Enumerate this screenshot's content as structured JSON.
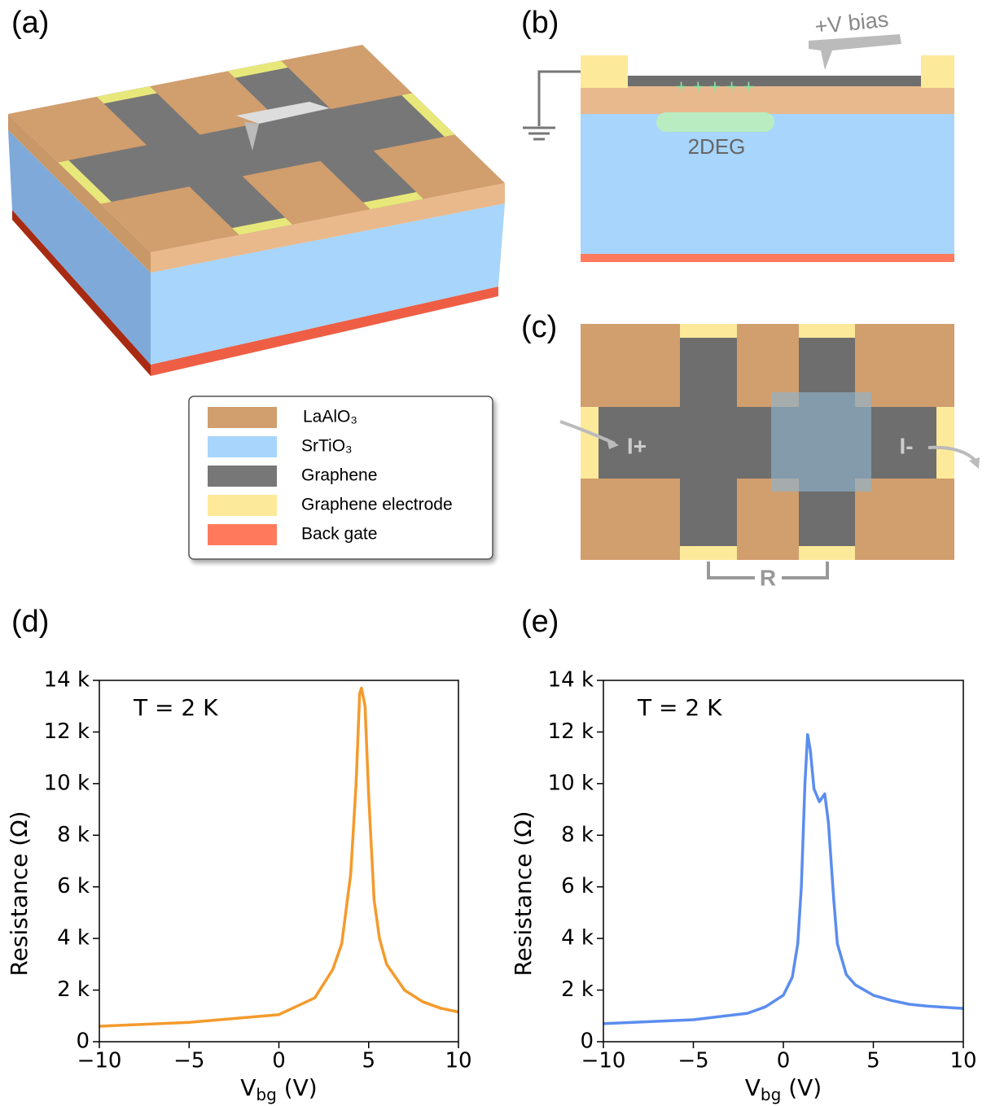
{
  "panel_labels": [
    "(a)",
    "(b)",
    "(c)",
    "(d)",
    "(e)"
  ],
  "legend": [
    "LaAlO₃",
    "SrTiO₃",
    "Graphene",
    "Graphene electrode",
    "Back gate"
  ],
  "diagram_b": {
    "bias": "+V bias",
    "charges": "+ + + + +",
    "deg": "2DEG"
  },
  "diagram_c": {
    "current_in": "I+",
    "current_out": "I-",
    "resistance": "R"
  },
  "chart_data": [
    {
      "type": "line",
      "annotation": "T = 2 K",
      "y_label": "Resistance (Ω)",
      "x_label": [
        "V",
        "bg",
        " (V)"
      ],
      "color": "#f49a2c",
      "x": [
        -10,
        -5,
        0,
        2,
        3,
        3.5,
        4,
        4.3,
        4.5,
        4.6,
        4.8,
        5,
        5.3,
        5.6,
        6,
        7,
        8,
        9,
        10
      ],
      "values": [
        600,
        750,
        1050,
        1700,
        2800,
        3800,
        6500,
        10000,
        13500,
        13700,
        13000,
        9500,
        5500,
        4000,
        3000,
        2000,
        1550,
        1300,
        1150
      ],
      "xlim": [
        -10,
        10
      ],
      "xticks": [
        {
          "value": -10,
          "label": "−10"
        },
        {
          "value": -5,
          "label": "−5"
        },
        0,
        5,
        10
      ],
      "ylim": [
        0,
        14000
      ],
      "yticks": [
        0,
        {
          "value": 2000,
          "label": "2 k"
        },
        {
          "value": 4000,
          "label": "4 k"
        },
        {
          "value": 6000,
          "label": "6 k"
        },
        {
          "value": 8000,
          "label": "8 k"
        },
        {
          "value": 10000,
          "label": "10 k"
        },
        {
          "value": 12000,
          "label": "12 k"
        },
        {
          "value": 14000,
          "label": "14 k"
        }
      ]
    },
    {
      "type": "line",
      "annotation": "T = 2 K",
      "y_label": "Resistance (Ω)",
      "x_label": [
        "V",
        "bg",
        " (V)"
      ],
      "color": "#5b8def",
      "x": [
        -10,
        -5,
        -2,
        -1,
        0,
        0.5,
        0.8,
        1,
        1.2,
        1.35,
        1.5,
        1.7,
        2,
        2.3,
        2.5,
        2.8,
        3,
        3.5,
        4,
        5,
        6,
        7,
        8,
        9,
        10
      ],
      "values": [
        700,
        850,
        1100,
        1350,
        1800,
        2500,
        3800,
        6000,
        10000,
        11900,
        11300,
        9800,
        9300,
        9600,
        8500,
        5500,
        3800,
        2600,
        2200,
        1800,
        1600,
        1450,
        1380,
        1330,
        1290
      ],
      "xlim": [
        -10,
        10
      ],
      "xticks": [
        {
          "value": -10,
          "label": "−10"
        },
        {
          "value": -5,
          "label": "−5"
        },
        0,
        5,
        10
      ],
      "ylim": [
        0,
        14000
      ],
      "yticks": [
        0,
        {
          "value": 2000,
          "label": "2 k"
        },
        {
          "value": 4000,
          "label": "4 k"
        },
        {
          "value": 6000,
          "label": "6 k"
        },
        {
          "value": 8000,
          "label": "8 k"
        },
        {
          "value": 10000,
          "label": "10 k"
        },
        {
          "value": 12000,
          "label": "12 k"
        },
        {
          "value": 14000,
          "label": "14 k"
        }
      ]
    }
  ]
}
